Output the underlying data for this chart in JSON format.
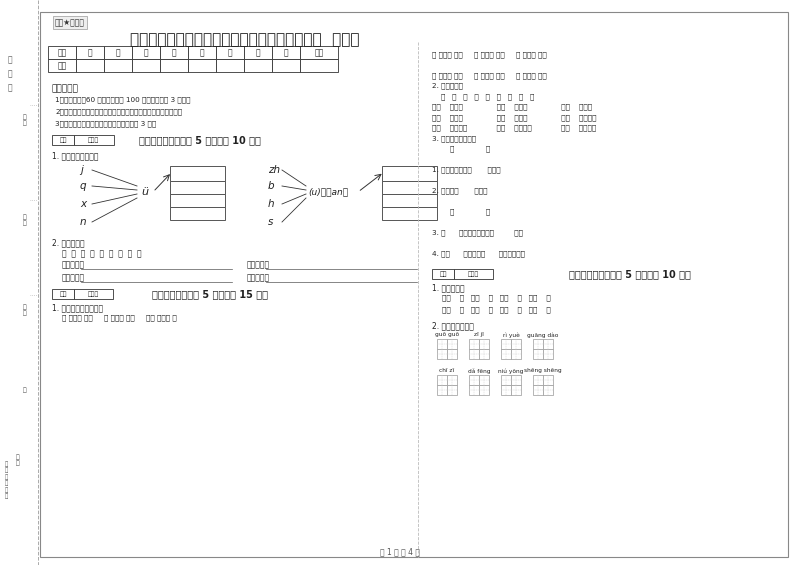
{
  "title": "河北省重点小学一年级语文下学期期末考试试卷  附答案",
  "watermark": "微题★自用图",
  "page_footer": "第 1 页 共 4 页",
  "bg_color": "#ffffff",
  "border_color": "#000000",
  "table_headers": [
    "题号",
    "一",
    "二",
    "三",
    "四",
    "五",
    "六",
    "七",
    "八",
    "总分"
  ],
  "table_row": [
    "得分",
    "",
    "",
    "",
    "",
    "",
    "",
    "",
    "",
    ""
  ],
  "notice_title": "考试须知：",
  "notice_items": [
    "1、考试时间：60 分钟，满分为 100 分（含卷面分 3 分）。",
    "2、请首先按要求在试卷的指定位置填写您的姓名、班级、学号。",
    "3、不要在试卷上乱写乱画，卷面不整洁扣 3 分。"
  ],
  "section1_header": "一、拼音部分（每题 5 分，共计 10 分）",
  "section1_sub1": "1. 我会拼，我会写。",
  "left_consonants": [
    "j",
    "q",
    "x",
    "n"
  ],
  "left_vowel": "ü",
  "right_consonants1": [
    "zh",
    "b",
    "h",
    "s"
  ],
  "right_formula": "(u)－（an）",
  "section1_sub2": "2. 我会分类。",
  "classify_chars": "山  看  声  拾  色  四  青  方  玩",
  "classify_rows": [
    [
      "平舌音字：",
      "翘舌音字："
    ],
    [
      "前鼻音字：",
      "后鼻音字："
    ]
  ],
  "section2_header": "二、填空题（每题 5 分，共计 15 分）",
  "section2_sub1": "1. 填上数字成为成语。",
  "section2_sub1_content": "（ ）心（ ）意     （ ）刀（ ）断     不（ ）不（ ）",
  "right_col_content": [
    "（ ）颜（ ）色     （ ）嚼（ ）活     （ ）章（ ）稳",
    "",
    "（ ）全（ ）美     （ ）方（ ）计     （ ）军（ ）马",
    "2. 选字填空。",
    "    同   山   座   蓝   家   车   换   地   个",
    "隔（    ）青山               隔（    ）房子               隔（    ）草地",
    "隔（    ）村子               隔（    ）工厂               满（    ）的绿树",
    "满（    ）的桃子             满（    ）的西瓜             满（    ）的青菜",
    "3. 你能选择正确吗？",
    "        入              八",
    "",
    "1. 我们来自四面（       ）方。",
    "",
    "2. 这里是（       ）口。",
    "",
    "        天              大",
    "",
    "3. （      ）刮下了整整一（         ）。",
    "",
    "4. 明（      ）老师请（      ）家吃水果。"
  ],
  "section3_header": "三、识字写字（每题 5 分，共计 10 分）",
  "section3_sub1": "1. 我会组词。",
  "section3_words": [
    "天（    ）   土（    ）   出（    ）   中（    ）",
    "开（    ）   乐（    ）   马（    ）   开（    ）"
  ],
  "section3_sub2": "2. 看拼音写词语。",
  "pinyin_row1": [
    "guō guō",
    "zī jī",
    "rì yuè",
    "guāng dào"
  ],
  "pinyin_row2": [
    "chī zī",
    "dǎ fēng",
    "niú yōng",
    "shēng shēng"
  ],
  "score_box_label": "得分  评卷人",
  "left_margin_texts": [
    "装",
    "订",
    "线",
    "班级",
    "姓名",
    "学号"
  ],
  "font_color": "#222222",
  "light_gray": "#888888",
  "table_border": "#333333"
}
